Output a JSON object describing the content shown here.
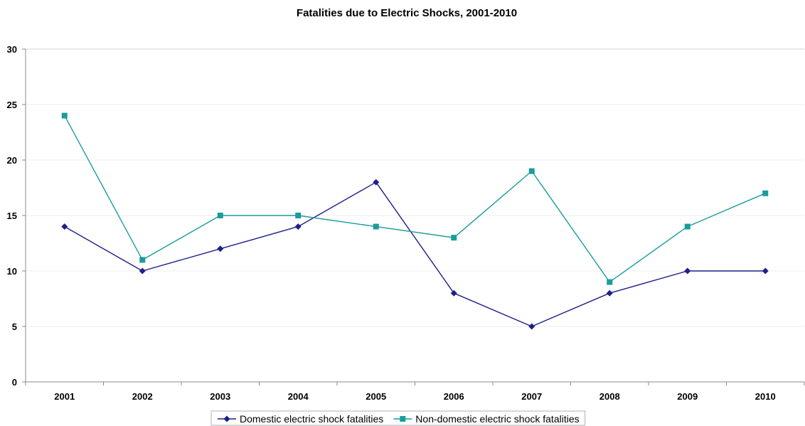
{
  "chart_data": {
    "type": "line",
    "title": "Fatalities due to Electric Shocks, 2001-2010",
    "xlabel": "",
    "ylabel": "",
    "categories": [
      "2001",
      "2002",
      "2003",
      "2004",
      "2005",
      "2006",
      "2007",
      "2008",
      "2009",
      "2010"
    ],
    "ylim": [
      0,
      30
    ],
    "yticks": [
      "0",
      "5",
      "10",
      "15",
      "20",
      "25",
      "30"
    ],
    "grid": true,
    "legend_position": "bottom",
    "series": [
      {
        "name": "Domestic electric shock fatalities",
        "values": [
          14,
          10,
          12,
          14,
          18,
          8,
          5,
          8,
          10,
          10
        ],
        "color": "#1f1f8a",
        "marker": "diamond"
      },
      {
        "name": "Non-domestic electric shock fatalities",
        "values": [
          24,
          11,
          15,
          15,
          14,
          13,
          19,
          9,
          14,
          17
        ],
        "color": "#1a9c9c",
        "marker": "square"
      }
    ]
  }
}
